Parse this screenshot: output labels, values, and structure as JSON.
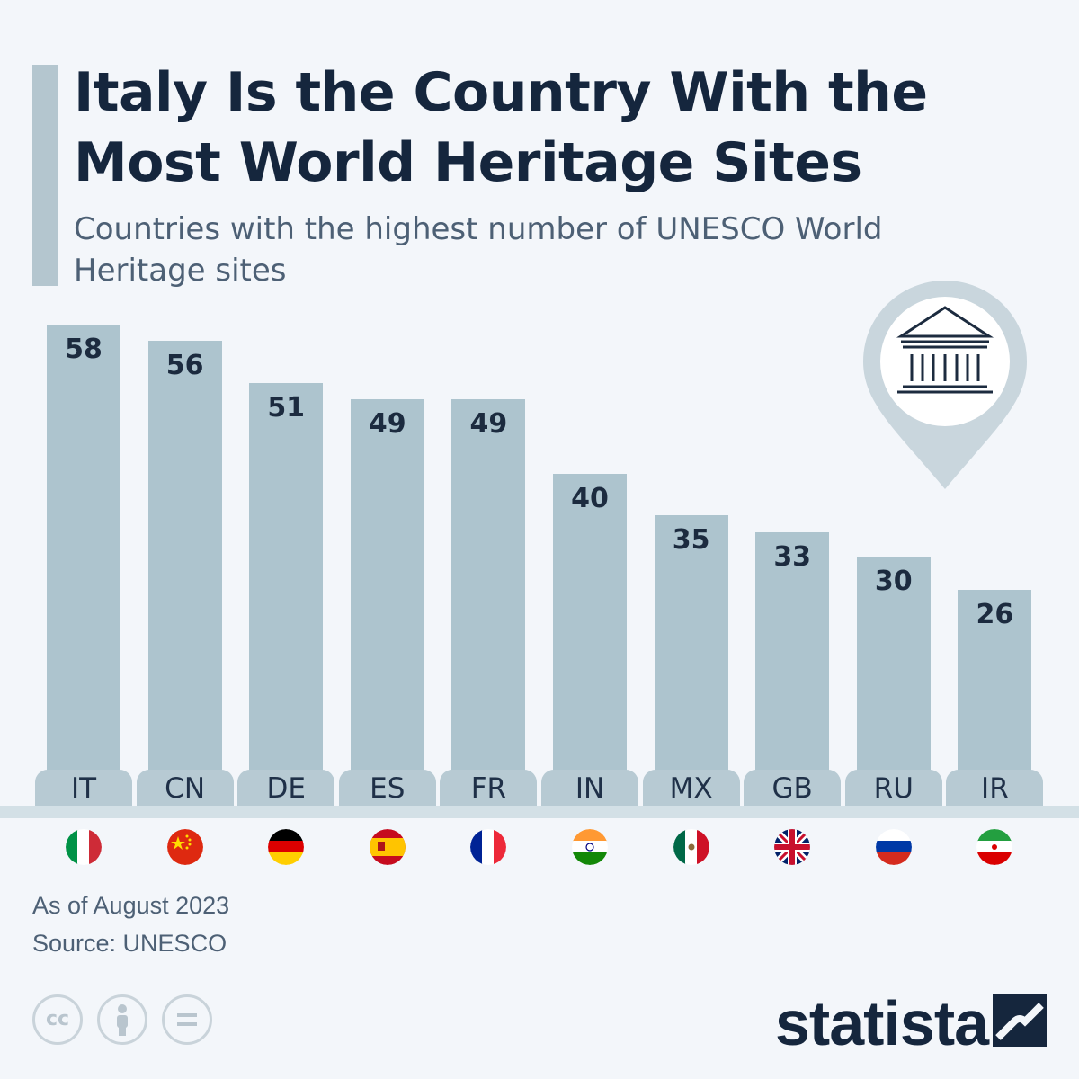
{
  "header": {
    "title": "Italy Is the Country With the Most World Heritage Sites",
    "subtitle": "Countries with the highest number of UNESCO World Heritage sites"
  },
  "chart_data": {
    "type": "bar",
    "title": "Italy Is the Country With the Most World Heritage Sites",
    "subtitle": "Countries with the highest number of UNESCO World Heritage sites",
    "categories": [
      "IT",
      "CN",
      "DE",
      "ES",
      "FR",
      "IN",
      "MX",
      "GB",
      "RU",
      "IR"
    ],
    "values": [
      58,
      56,
      51,
      49,
      49,
      40,
      35,
      33,
      30,
      26
    ],
    "xlabel": "",
    "ylabel": "",
    "ylim": [
      0,
      58
    ],
    "grid": false,
    "legend": "none",
    "bar_color": "#adc4ce",
    "flags": [
      "italy-flag",
      "china-flag",
      "germany-flag",
      "spain-flag",
      "france-flag",
      "india-flag",
      "mexico-flag",
      "uk-flag",
      "russia-flag",
      "iran-flag"
    ]
  },
  "footer": {
    "note": "As of August 2023",
    "source": "Source: UNESCO",
    "license_icons": [
      "cc-icon",
      "attribution-icon",
      "no-derivatives-icon"
    ],
    "brand": "statista"
  },
  "colors": {
    "background": "#f3f6fa",
    "title": "#15263d",
    "subtitle": "#4d6075",
    "bar": "#adc4ce",
    "accent_bar": "#b4c6cf"
  }
}
